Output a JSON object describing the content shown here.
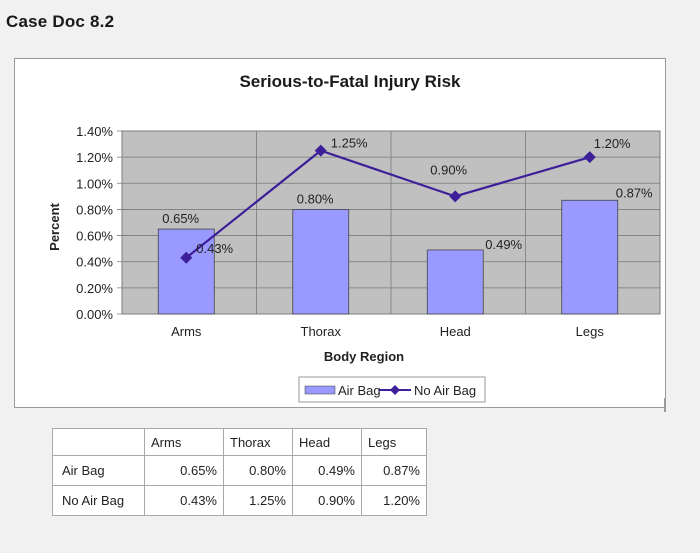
{
  "document": {
    "title": "Case Doc 8.2"
  },
  "chart_data": {
    "type": "bar+line",
    "title": "Serious-to-Fatal Injury Risk",
    "xlabel": "Body Region",
    "ylabel": "Percent",
    "categories": [
      "Arms",
      "Thorax",
      "Head",
      "Legs"
    ],
    "ylim": [
      0,
      1.4
    ],
    "yticks": [
      "0.00%",
      "0.20%",
      "0.40%",
      "0.60%",
      "0.80%",
      "1.00%",
      "1.20%",
      "1.40%"
    ],
    "ytick_values": [
      0,
      0.2,
      0.4,
      0.6,
      0.8,
      1.0,
      1.2,
      1.4
    ],
    "grid": true,
    "legend_position": "bottom",
    "series": [
      {
        "name": "Air Bag",
        "kind": "bar",
        "color": "#9999ff",
        "values": [
          0.65,
          0.8,
          0.49,
          0.87
        ],
        "labels": [
          "0.65%",
          "0.80%",
          "0.49%",
          "0.87%"
        ]
      },
      {
        "name": "No Air Bag",
        "kind": "line",
        "color": "#3d1f99",
        "values": [
          0.43,
          1.25,
          0.9,
          1.2
        ],
        "labels": [
          "0.43%",
          "1.25%",
          "0.90%",
          "1.20%"
        ]
      }
    ],
    "plot_background": "#c0c0c0"
  },
  "table": {
    "headers": [
      "Arms",
      "Thorax",
      "Head",
      "Legs"
    ],
    "rows": [
      {
        "label": "Air Bag",
        "values": [
          "0.65%",
          "0.80%",
          "0.49%",
          "0.87%"
        ]
      },
      {
        "label": "No Air Bag",
        "values": [
          "0.43%",
          "1.25%",
          "0.90%",
          "1.20%"
        ]
      }
    ]
  }
}
